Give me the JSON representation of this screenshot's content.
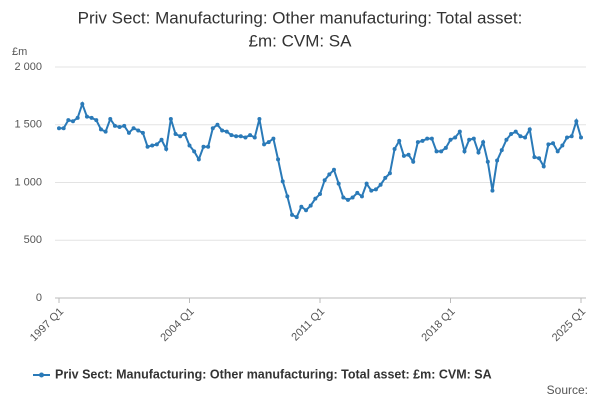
{
  "chart_data": {
    "type": "line",
    "title": [
      "Priv Sect: Manufacturing: Other manufacturing: Total asset:",
      "£m: CVM: SA"
    ],
    "y_axis_label": "£m",
    "source": "Source:",
    "categories": [
      "1997 Q1",
      null,
      null,
      null,
      null,
      null,
      null,
      null,
      null,
      null,
      null,
      null,
      null,
      null,
      null,
      null,
      null,
      null,
      null,
      null,
      null,
      null,
      null,
      null,
      null,
      null,
      null,
      null,
      "2004 Q1",
      null,
      null,
      null,
      null,
      null,
      null,
      null,
      null,
      null,
      null,
      null,
      null,
      null,
      null,
      null,
      null,
      null,
      null,
      null,
      null,
      null,
      null,
      null,
      null,
      null,
      null,
      null,
      "2011 Q1",
      null,
      null,
      null,
      null,
      null,
      null,
      null,
      null,
      null,
      null,
      null,
      null,
      null,
      null,
      null,
      null,
      null,
      null,
      null,
      null,
      null,
      null,
      null,
      null,
      null,
      null,
      null,
      "2018 Q1",
      null,
      null,
      null,
      null,
      null,
      null,
      null,
      null,
      null,
      null,
      null,
      null,
      null,
      null,
      null,
      null,
      null,
      null,
      null,
      null,
      null,
      null,
      null,
      null,
      null,
      null,
      null,
      "2025 Q1"
    ],
    "series": [
      {
        "name": "Priv Sect: Manufacturing: Other manufacturing: Total asset: £m: CVM: SA",
        "color": "#2a7ab8",
        "values": [
          1470,
          1470,
          1540,
          1530,
          1560,
          1680,
          1570,
          1560,
          1540,
          1460,
          1440,
          1550,
          1490,
          1480,
          1490,
          1430,
          1470,
          1450,
          1430,
          1310,
          1320,
          1330,
          1370,
          1290,
          1550,
          1420,
          1400,
          1420,
          1320,
          1270,
          1200,
          1310,
          1310,
          1470,
          1500,
          1450,
          1440,
          1410,
          1400,
          1400,
          1390,
          1410,
          1390,
          1550,
          1330,
          1350,
          1380,
          1200,
          1010,
          880,
          720,
          700,
          790,
          760,
          800,
          860,
          900,
          1020,
          1070,
          1110,
          990,
          870,
          850,
          870,
          910,
          880,
          990,
          930,
          940,
          980,
          1040,
          1080,
          1290,
          1360,
          1230,
          1240,
          1180,
          1350,
          1360,
          1380,
          1380,
          1270,
          1270,
          1300,
          1370,
          1390,
          1440,
          1270,
          1370,
          1380,
          1260,
          1350,
          1180,
          930,
          1190,
          1280,
          1370,
          1420,
          1440,
          1400,
          1390,
          1460,
          1220,
          1210,
          1140,
          1330,
          1340,
          1270,
          1320,
          1390,
          1400,
          1530,
          1390
        ]
      }
    ],
    "ylim": [
      0,
      2000
    ],
    "yticks": [
      0,
      500,
      {
        "value": 1000,
        "label": "1 000"
      },
      {
        "value": 1500,
        "label": "1 500"
      },
      {
        "value": 2000,
        "label": "2 000"
      }
    ],
    "grid": true
  }
}
